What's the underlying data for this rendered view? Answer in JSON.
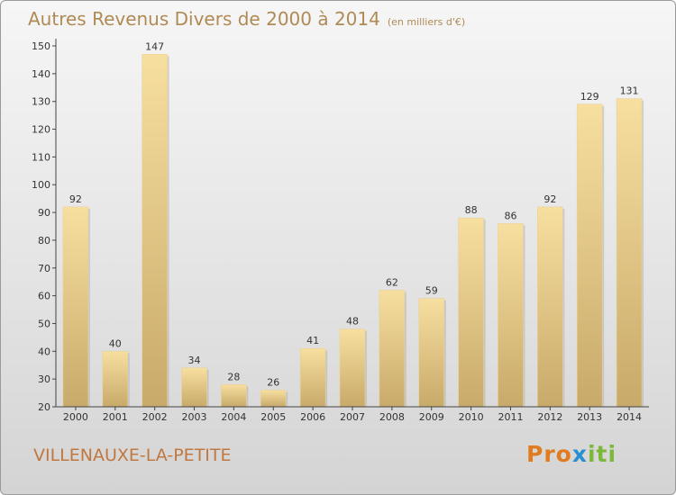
{
  "header": {
    "title": "Autres Revenus Divers de 2000 à 2014",
    "unit_note": "(en milliers d'€)"
  },
  "footer": {
    "location": "VILLENAUXE-LA-PETITE",
    "brand": "Proxiti"
  },
  "chart_data": {
    "type": "bar",
    "title": "Autres Revenus Divers de 2000 à 2014",
    "subtitle": "(en milliers d'€)",
    "categories": [
      "2000",
      "2001",
      "2002",
      "2003",
      "2004",
      "2005",
      "2006",
      "2007",
      "2008",
      "2009",
      "2010",
      "2011",
      "2012",
      "2013",
      "2014"
    ],
    "values": [
      92,
      40,
      147,
      34,
      28,
      26,
      41,
      48,
      62,
      59,
      88,
      86,
      92,
      129,
      131
    ],
    "ylim": [
      20,
      150
    ],
    "yticks": [
      20,
      30,
      40,
      50,
      60,
      70,
      80,
      90,
      100,
      110,
      120,
      130,
      140,
      150
    ],
    "grid": false,
    "colors": {
      "bar_light": "#f7dfa0",
      "bar_dark": "#c8aa6a",
      "axis": "#444444",
      "title": "#b08a55"
    }
  }
}
